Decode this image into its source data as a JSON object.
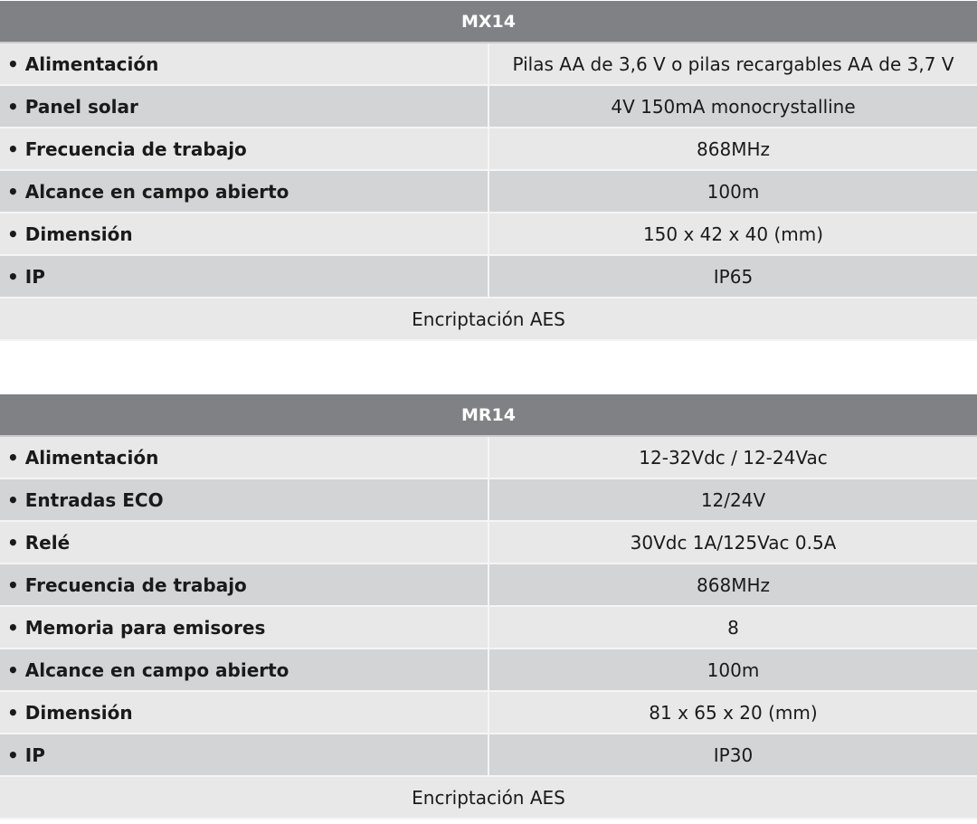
{
  "tables": [
    {
      "title": "MX14",
      "rows": [
        {
          "label": "• Alimentación",
          "value": "Pilas AA de 3,6 V o pilas recargables AA de 3,7 V"
        },
        {
          "label": "• Panel solar",
          "value": "4V 150mA monocrystalline"
        },
        {
          "label": "• Frecuencia de trabajo",
          "value": "868MHz"
        },
        {
          "label": "• Alcance en campo abierto",
          "value": "100m"
        },
        {
          "label": "• Dimensión",
          "value": "150 x 42 x 40 (mm)"
        },
        {
          "label": "• IP",
          "value": "IP65"
        }
      ],
      "footer": "Encriptación AES"
    },
    {
      "title": "MR14",
      "rows": [
        {
          "label": "• Alimentación",
          "value": "12-32Vdc  /  12-24Vac"
        },
        {
          "label": "• Entradas ECO",
          "value": "12/24V"
        },
        {
          "label": "• Relé",
          "value": "30Vdc 1A/125Vac 0.5A"
        },
        {
          "label": "• Frecuencia de trabajo",
          "value": "868MHz"
        },
        {
          "label": "• Memoria para emisores",
          "value": "8"
        },
        {
          "label": "• Alcance en campo abierto",
          "value": "100m"
        },
        {
          "label": "• Dimensión",
          "value": "81 x 65 x 20 (mm)"
        },
        {
          "label": "• IP",
          "value": "IP30"
        }
      ],
      "footer": "Encriptación AES"
    }
  ]
}
